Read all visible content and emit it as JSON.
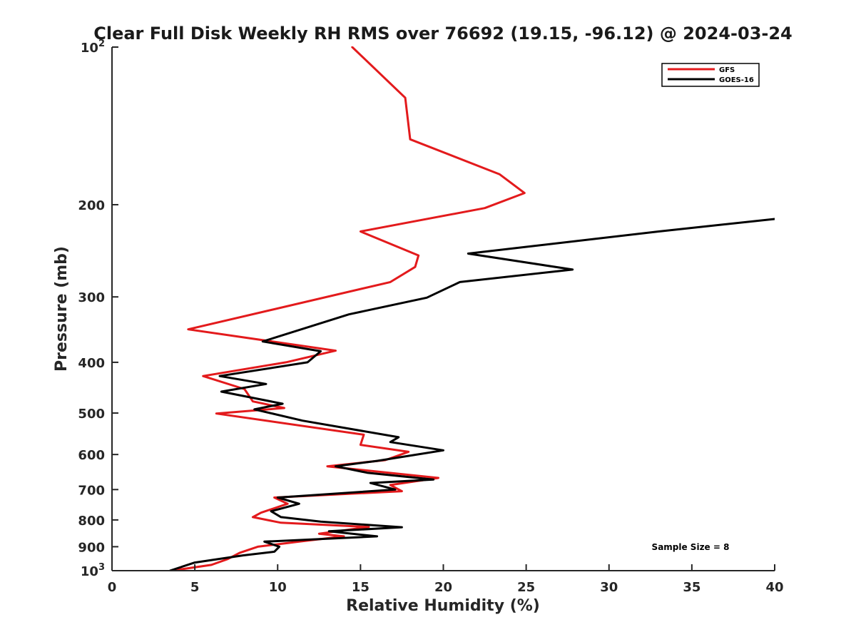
{
  "chart_data": {
    "type": "line",
    "title": "Clear Full Disk Weekly RH RMS over 76692 (19.15, -96.12) @ 2024-03-24",
    "xlabel": "Relative Humidity (%)",
    "ylabel": "Pressure (mb)",
    "xlim": [
      0,
      40
    ],
    "ylim": [
      100,
      1000
    ],
    "y_scale": "log",
    "y_reversed": true,
    "x_ticks": [
      0,
      5,
      10,
      15,
      20,
      25,
      30,
      35,
      40
    ],
    "x_tick_labels": [
      "0",
      "5",
      "10",
      "15",
      "20",
      "25",
      "30",
      "35",
      "40"
    ],
    "y_ticks": [
      100,
      200,
      300,
      400,
      500,
      600,
      700,
      800,
      900,
      1000
    ],
    "y_tick_labels": [
      {
        "base": "10",
        "sup": "2"
      },
      {
        "base": "200",
        "sup": ""
      },
      {
        "base": "300",
        "sup": ""
      },
      {
        "base": "400",
        "sup": ""
      },
      {
        "base": "500",
        "sup": ""
      },
      {
        "base": "600",
        "sup": ""
      },
      {
        "base": "700",
        "sup": ""
      },
      {
        "base": "800",
        "sup": ""
      },
      {
        "base": "900",
        "sup": ""
      },
      {
        "base": "10",
        "sup": "3"
      }
    ],
    "legend_position": "top-right",
    "annotation": "Sample Size = 8",
    "series": [
      {
        "name": "GFS",
        "color": "#e31a1c",
        "points": [
          [
            14.5,
            100
          ],
          [
            17.7,
            125
          ],
          [
            18.0,
            150
          ],
          [
            23.4,
            175
          ],
          [
            24.9,
            190
          ],
          [
            22.5,
            203
          ],
          [
            15.0,
            225
          ],
          [
            18.5,
            250
          ],
          [
            18.3,
            263
          ],
          [
            16.8,
            281
          ],
          [
            4.6,
            346
          ],
          [
            13.5,
            380
          ],
          [
            10.5,
            400
          ],
          [
            5.5,
            425
          ],
          [
            8.0,
            450
          ],
          [
            8.5,
            475
          ],
          [
            10.4,
            489
          ],
          [
            6.3,
            501
          ],
          [
            15.2,
            550
          ],
          [
            15.0,
            575
          ],
          [
            17.9,
            593
          ],
          [
            16.5,
            615
          ],
          [
            13.0,
            632
          ],
          [
            19.7,
            665
          ],
          [
            16.8,
            686
          ],
          [
            17.5,
            705
          ],
          [
            9.8,
            725
          ],
          [
            10.6,
            745
          ],
          [
            9.0,
            775
          ],
          [
            8.5,
            790
          ],
          [
            10.2,
            810
          ],
          [
            15.5,
            825
          ],
          [
            12.5,
            850
          ],
          [
            14.0,
            860
          ],
          [
            11.3,
            880
          ],
          [
            8.8,
            900
          ],
          [
            7.7,
            925
          ],
          [
            7.0,
            950
          ],
          [
            6.0,
            975
          ],
          [
            3.6,
            1000
          ]
        ]
      },
      {
        "name": "GOES-16",
        "color": "#000000",
        "points": [
          [
            40.0,
            213
          ],
          [
            33.0,
            225
          ],
          [
            21.5,
            248
          ],
          [
            27.8,
            266
          ],
          [
            21.0,
            281
          ],
          [
            19.0,
            301
          ],
          [
            14.3,
            324
          ],
          [
            9.1,
            365
          ],
          [
            12.6,
            381
          ],
          [
            11.8,
            400
          ],
          [
            6.5,
            425
          ],
          [
            9.3,
            440
          ],
          [
            6.6,
            455
          ],
          [
            10.3,
            480
          ],
          [
            8.6,
            492
          ],
          [
            11.5,
            517
          ],
          [
            17.3,
            556
          ],
          [
            16.8,
            568
          ],
          [
            20.0,
            589
          ],
          [
            16.0,
            617
          ],
          [
            13.5,
            632
          ],
          [
            15.4,
            650
          ],
          [
            19.4,
            670
          ],
          [
            15.6,
            680
          ],
          [
            17.1,
            700
          ],
          [
            10.0,
            725
          ],
          [
            11.3,
            745
          ],
          [
            9.6,
            770
          ],
          [
            10.2,
            790
          ],
          [
            12.6,
            806
          ],
          [
            17.5,
            826
          ],
          [
            13.1,
            841
          ],
          [
            16.0,
            860
          ],
          [
            9.2,
            880
          ],
          [
            10.1,
            900
          ],
          [
            9.8,
            920
          ],
          [
            7.9,
            935
          ],
          [
            5.0,
            965
          ],
          [
            3.5,
            1000
          ]
        ]
      }
    ]
  }
}
